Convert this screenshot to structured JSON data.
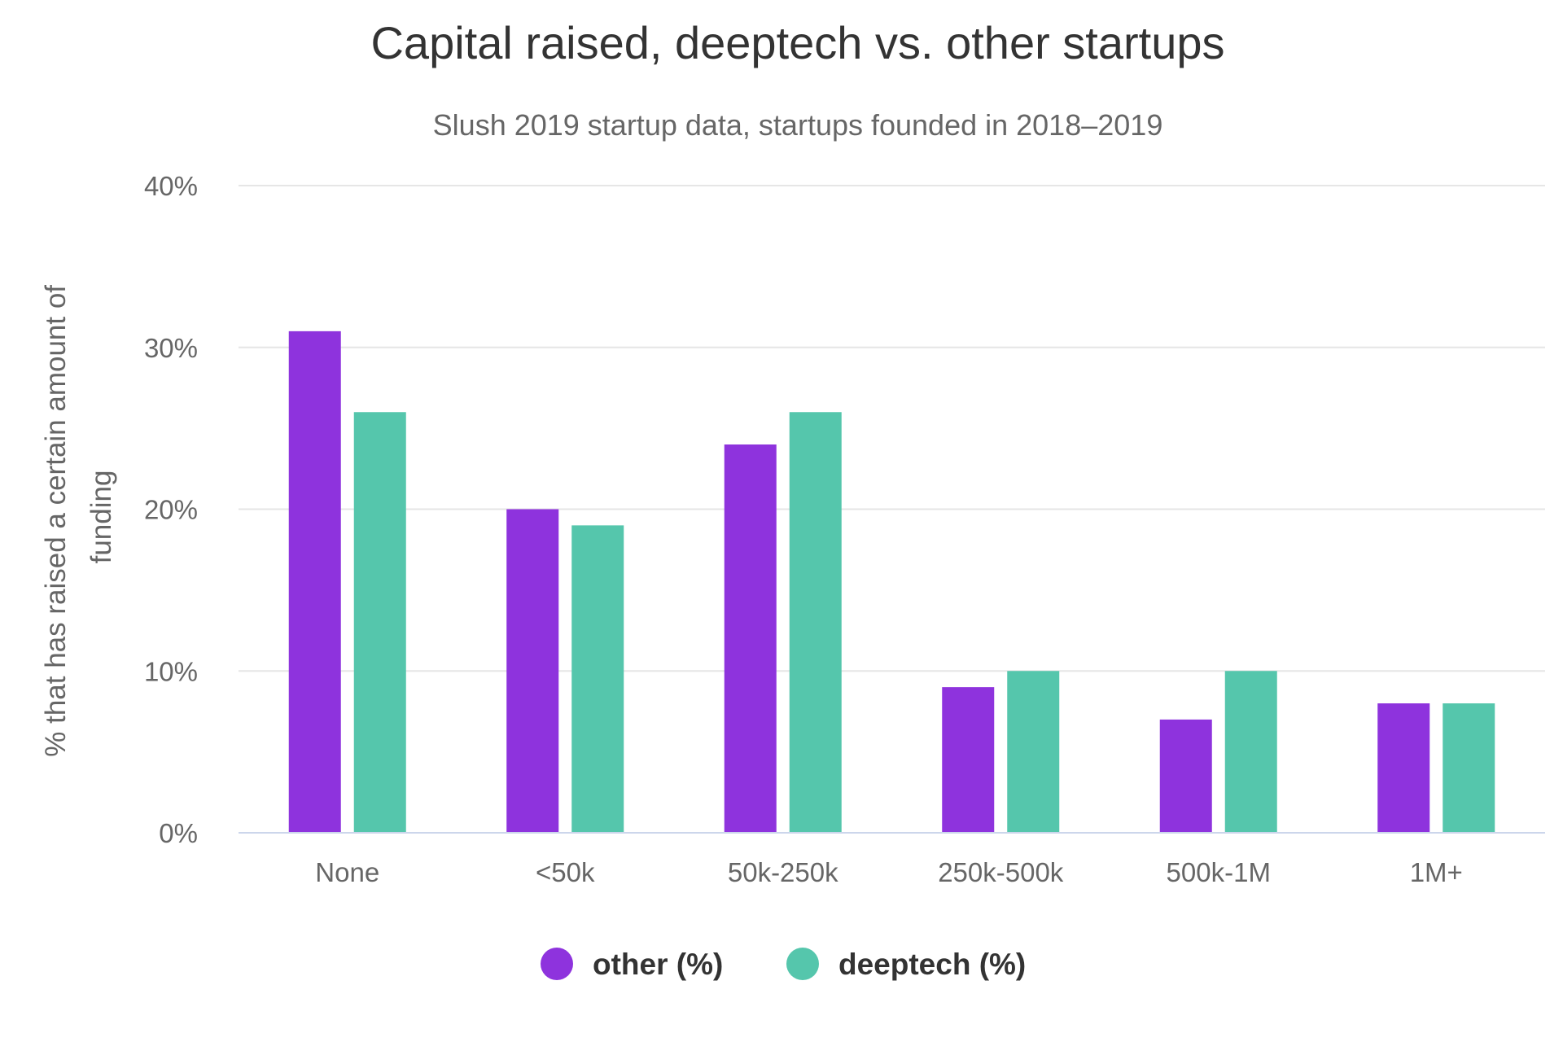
{
  "chart_data": {
    "type": "bar",
    "title": "Capital raised, deeptech vs. other startups",
    "subtitle": "Slush 2019 startup data, startups founded in 2018–2019",
    "xlabel": "",
    "ylabel_lines": [
      "% that has raised a certain amount of",
      "funding"
    ],
    "categories": [
      "None",
      "<50k",
      "50k-250k",
      "250k-500k",
      "500k-1M",
      "1M+"
    ],
    "series": [
      {
        "name": "other (%)",
        "color": "#8e33dd",
        "values": [
          31,
          20,
          24,
          9,
          7,
          8
        ]
      },
      {
        "name": "deeptech (%)",
        "color": "#55c6ac",
        "values": [
          26,
          19,
          26,
          10,
          10,
          8
        ]
      }
    ],
    "ylim": [
      0,
      40
    ],
    "yticks": [
      0,
      10,
      20,
      30,
      40
    ],
    "ytick_labels": [
      "0%",
      "10%",
      "20%",
      "30%",
      "40%"
    ],
    "grid": true,
    "legend_position": "bottom-center"
  }
}
